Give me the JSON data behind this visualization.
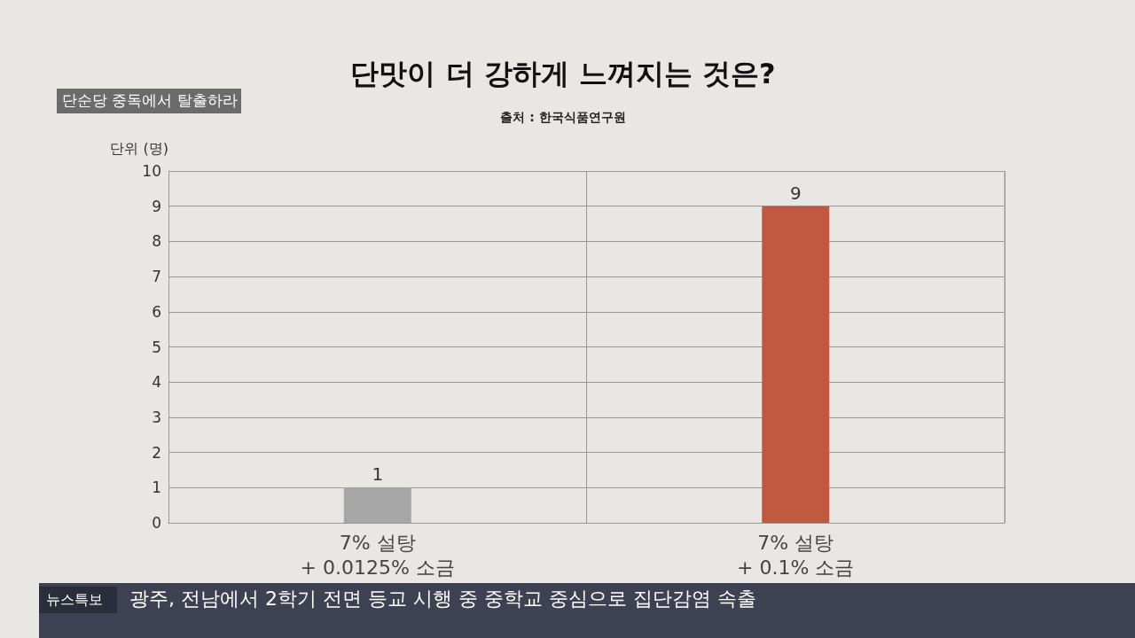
{
  "chart_data": {
    "type": "bar",
    "title": "단맛이 더 강하게 느껴지는 것은?",
    "subtitle": "출처 : 한국식품연구원",
    "ylabel": "단위 (명)",
    "categories": [
      "7% 설탕\n+ 0.0125% 소금",
      "7% 설탕\n+ 0.1% 소금"
    ],
    "values": [
      1,
      9
    ],
    "colors": [
      "#a6a6a6",
      "#c25840"
    ],
    "ylim": [
      0,
      10
    ],
    "yticks": [
      0,
      1,
      2,
      3,
      4,
      5,
      6,
      7,
      8,
      9,
      10
    ],
    "grid": true,
    "data_labels": true,
    "annotations": [
      "단순당 중독에서 탈출하라",
      "뉴스특보",
      "광주, 전남에서 2학기 전면 등교 시행 중 중학교 중심으로 집단감염 속출"
    ]
  }
}
